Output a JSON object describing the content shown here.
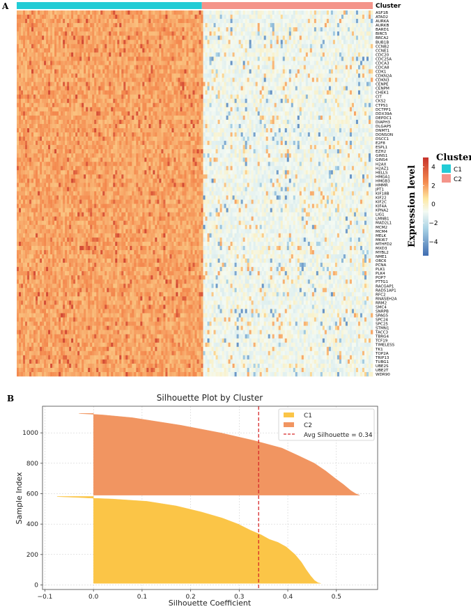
{
  "panel_a_label": "A",
  "panel_b_label": "B",
  "chart_data": [
    {
      "type": "heatmap",
      "annotation_bar_label": "Cluster",
      "groups": [
        {
          "name": "C1",
          "color": "#22ccd6",
          "sample_fraction": 0.52
        },
        {
          "name": "C2",
          "color": "#f4948a",
          "sample_fraction": 0.48
        }
      ],
      "genes": [
        "ASF1B",
        "ATAD2",
        "AURKA",
        "AURKB",
        "BARD1",
        "BIRC5",
        "BRCA2",
        "BUB1B",
        "CCNB2",
        "CCNE1",
        "CDC20",
        "CDC25A",
        "CDCA3",
        "CDCA8",
        "CDK1",
        "CDKN2A",
        "CDKN3",
        "CENPE",
        "CENPM",
        "CHEK1",
        "CIT",
        "CKS2",
        "CTPS1",
        "DCTPP1",
        "DDX39A",
        "DEPDC1",
        "DIAPH3",
        "DLGAP5",
        "DNMT1",
        "DONSON",
        "DSCC1",
        "E2F8",
        "ESPL1",
        "EZH2",
        "GINS1",
        "GINS4",
        "H2AX",
        "H2AZ1",
        "HELLS",
        "HMGA1",
        "HMGB3",
        "HMMR",
        "JPT1",
        "KIF18B",
        "KIF22",
        "KIF2C",
        "KIF4A",
        "KPNA2",
        "LIG1",
        "LMNB1",
        "MAD2L1",
        "MCM2",
        "MCM4",
        "MELK",
        "MKI67",
        "MTHFD2",
        "MXD3",
        "MYBL2",
        "NME1",
        "ORC6",
        "PCNA",
        "PLK1",
        "PLK4",
        "POP7",
        "PTTG1",
        "RACGAP1",
        "RAD51AP1",
        "RFC2",
        "RNASEH2A",
        "RRM2",
        "SMC4",
        "SNRPB",
        "SPAG5",
        "SPC24",
        "SPC25",
        "STMN1",
        "TACC3",
        "TBRG4",
        "TCF19",
        "TIMELESS",
        "TK1",
        "TOP2A",
        "TRIP13",
        "TUBG1",
        "UBE2S",
        "UBE2T",
        "WDR90"
      ],
      "colorbar": {
        "title": "Expression level",
        "range": [
          -5.5,
          5.0
        ],
        "ticks": [
          4,
          2,
          0,
          -2,
          -4
        ],
        "tick_labels": [
          "4",
          "2",
          "0",
          "−2",
          "−4"
        ]
      },
      "legend_title": "Cluster",
      "legend_entries": [
        "C1",
        "C2"
      ],
      "group_mean_expression": {
        "C1": 2.2,
        "C2": -0.3
      }
    },
    {
      "type": "area",
      "title": "Silhouette Plot by Cluster",
      "xlabel": "Silhouette Coefficient",
      "ylabel": "Sample Index",
      "xlim": [
        -0.105,
        0.585
      ],
      "ylim": [
        -30,
        1175
      ],
      "xticks": [
        -0.1,
        0.0,
        0.1,
        0.2,
        0.3,
        0.4,
        0.5
      ],
      "xtick_labels": [
        "−0.1",
        "0.0",
        "0.1",
        "0.2",
        "0.3",
        "0.4",
        "0.5"
      ],
      "yticks": [
        0,
        200,
        400,
        600,
        800,
        1000
      ],
      "ytick_labels": [
        "0",
        "200",
        "400",
        "600",
        "800",
        "1000"
      ],
      "grid": true,
      "series": [
        {
          "name": "C1",
          "color": "#fbc547",
          "y_range": [
            10,
            582
          ],
          "profile": [
            [
              10,
              0.468
            ],
            [
              15,
              0.462
            ],
            [
              30,
              0.455
            ],
            [
              60,
              0.447
            ],
            [
              100,
              0.438
            ],
            [
              150,
              0.428
            ],
            [
              200,
              0.415
            ],
            [
              250,
              0.397
            ],
            [
              280,
              0.38
            ],
            [
              300,
              0.362
            ],
            [
              330,
              0.345
            ],
            [
              360,
              0.323
            ],
            [
              400,
              0.298
            ],
            [
              440,
              0.265
            ],
            [
              480,
              0.222
            ],
            [
              520,
              0.17
            ],
            [
              550,
              0.11
            ],
            [
              565,
              0.04
            ],
            [
              570,
              0.0
            ],
            [
              575,
              -0.03
            ],
            [
              580,
              -0.07
            ],
            [
              582,
              -0.075
            ]
          ]
        },
        {
          "name": "C2",
          "color": "#f19561",
          "y_range": [
            590,
            1128
          ],
          "profile": [
            [
              590,
              0.548
            ],
            [
              600,
              0.54
            ],
            [
              620,
              0.53
            ],
            [
              660,
              0.515
            ],
            [
              700,
              0.498
            ],
            [
              750,
              0.478
            ],
            [
              800,
              0.455
            ],
            [
              850,
              0.422
            ],
            [
              900,
              0.388
            ],
            [
              950,
              0.33
            ],
            [
              1000,
              0.262
            ],
            [
              1050,
              0.18
            ],
            [
              1100,
              0.08
            ],
            [
              1118,
              0.02
            ],
            [
              1122,
              0.0
            ],
            [
              1126,
              -0.025
            ],
            [
              1128,
              -0.03
            ]
          ]
        }
      ],
      "reference_line": {
        "x": 0.34,
        "label": "Avg Silhouette = 0.34",
        "color": "#d62728"
      },
      "legend_entries": [
        "C1",
        "C2",
        "Avg Silhouette = 0.34"
      ],
      "legend_position": "top-right"
    }
  ]
}
